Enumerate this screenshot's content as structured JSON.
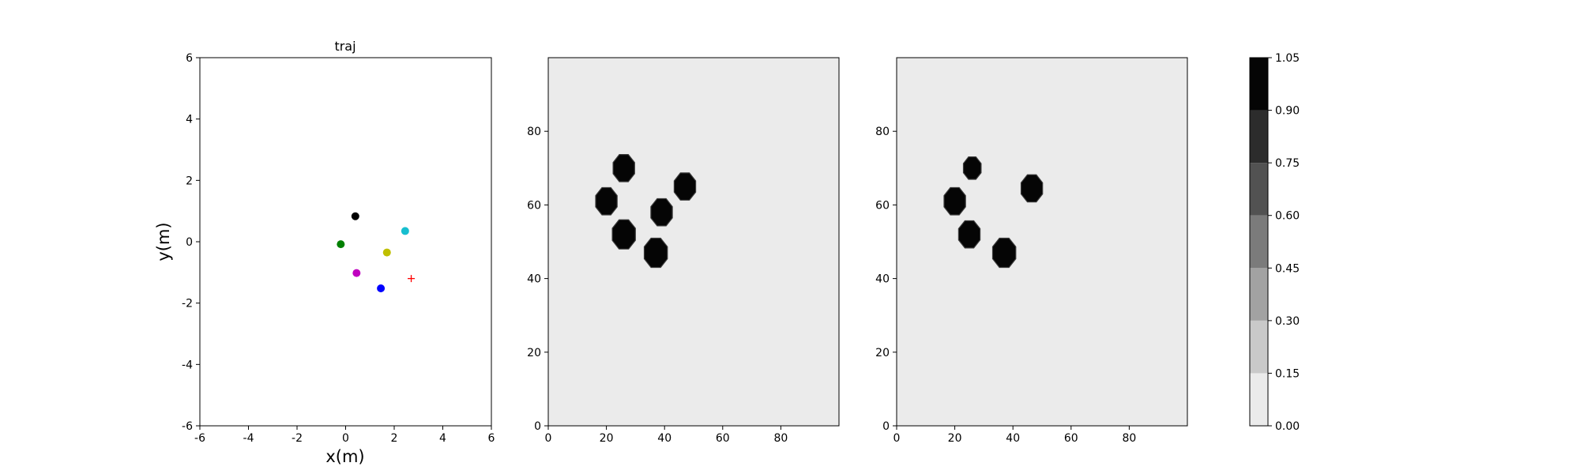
{
  "chart_data": [
    {
      "type": "scatter",
      "title": "traj",
      "xlabel": "x(m)",
      "ylabel": "y(m)",
      "xlim": [
        -6,
        6
      ],
      "ylim": [
        -6,
        6
      ],
      "x_ticks": [
        -6,
        -4,
        -2,
        0,
        2,
        4,
        6
      ],
      "y_ticks": [
        -6,
        -4,
        -2,
        0,
        2,
        4,
        6
      ],
      "grid": false,
      "points": [
        {
          "x": 0.4,
          "y": 0.83,
          "color": "#000000",
          "marker": "dot"
        },
        {
          "x": 2.45,
          "y": 0.35,
          "color": "#17becf",
          "marker": "dot"
        },
        {
          "x": -0.2,
          "y": -0.08,
          "color": "#008000",
          "marker": "dot"
        },
        {
          "x": 1.7,
          "y": -0.35,
          "color": "#bfbf00",
          "marker": "dot"
        },
        {
          "x": 0.45,
          "y": -1.02,
          "color": "#bf00bf",
          "marker": "dot"
        },
        {
          "x": 1.45,
          "y": -1.52,
          "color": "#0000ff",
          "marker": "dot"
        },
        {
          "x": 2.7,
          "y": -1.2,
          "color": "#ff0000",
          "marker": "plus"
        }
      ]
    },
    {
      "type": "heatmap",
      "xlim": [
        0,
        100
      ],
      "ylim": [
        0,
        100
      ],
      "x_ticks": [
        0,
        20,
        40,
        60,
        80
      ],
      "y_ticks": [
        0,
        20,
        40,
        60,
        80
      ],
      "background_value": 0.07,
      "blobs": [
        {
          "x": 26,
          "y": 70,
          "r": 4.0,
          "value": 1.0
        },
        {
          "x": 20,
          "y": 61,
          "r": 4.0,
          "value": 1.0
        },
        {
          "x": 47,
          "y": 65,
          "r": 4.0,
          "value": 1.0
        },
        {
          "x": 39,
          "y": 58,
          "r": 4.0,
          "value": 1.0
        },
        {
          "x": 26,
          "y": 52,
          "r": 4.3,
          "value": 1.0
        },
        {
          "x": 37,
          "y": 47,
          "r": 4.3,
          "value": 1.0
        }
      ]
    },
    {
      "type": "heatmap",
      "xlim": [
        0,
        100
      ],
      "ylim": [
        0,
        100
      ],
      "x_ticks": [
        0,
        20,
        40,
        60,
        80
      ],
      "y_ticks": [
        0,
        20,
        40,
        60,
        80
      ],
      "background_value": 0.07,
      "blobs": [
        {
          "x": 26,
          "y": 70,
          "r": 3.3,
          "value": 1.0
        },
        {
          "x": 20,
          "y": 61,
          "r": 4.0,
          "value": 1.0
        },
        {
          "x": 46.5,
          "y": 64.5,
          "r": 4.0,
          "value": 1.0
        },
        {
          "x": 25,
          "y": 52,
          "r": 4.0,
          "value": 1.0
        },
        {
          "x": 37,
          "y": 47,
          "r": 4.3,
          "value": 1.0
        }
      ]
    }
  ],
  "colorbar": {
    "levels": [
      0.0,
      0.15,
      0.3,
      0.45,
      0.6,
      0.75,
      0.9,
      1.05
    ],
    "tick_labels": [
      "0.00",
      "0.15",
      "0.30",
      "0.45",
      "0.60",
      "0.75",
      "0.90",
      "1.05"
    ],
    "band_colors": [
      "#ebebeb",
      "#c9c9c9",
      "#a2a2a2",
      "#7b7b7b",
      "#525252",
      "#2c2c2c",
      "#050505"
    ]
  }
}
